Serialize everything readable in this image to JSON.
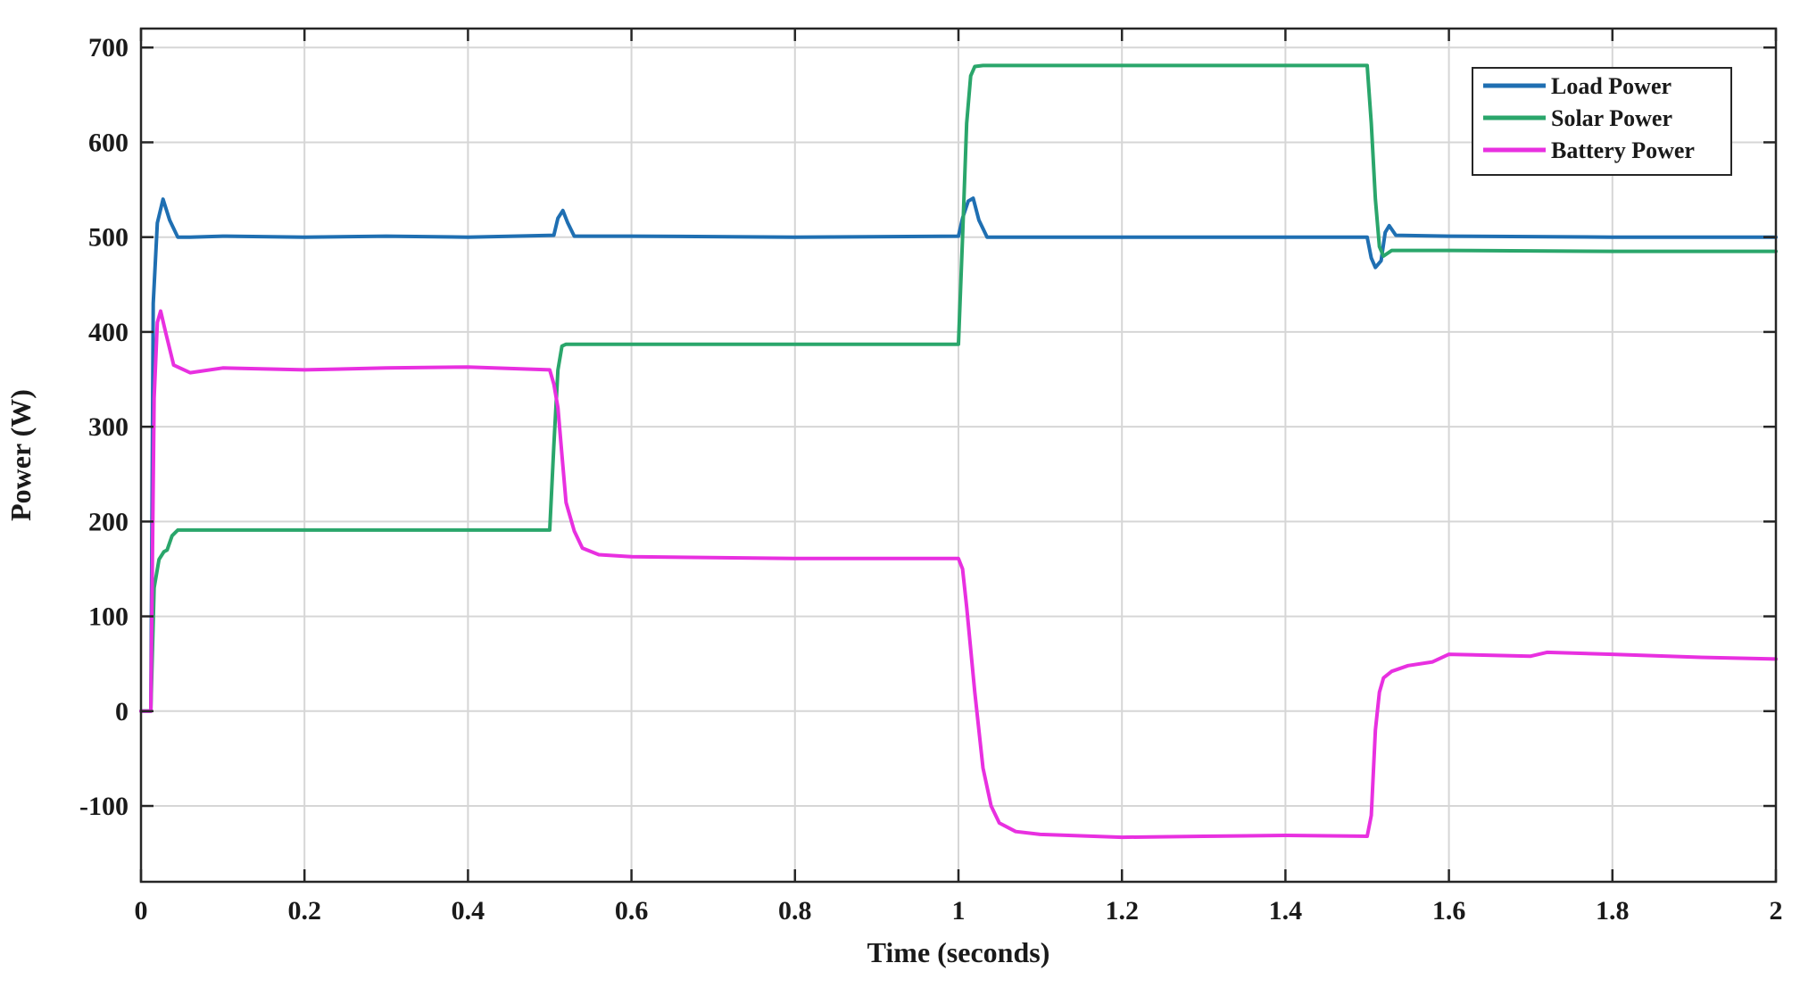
{
  "chart_data": {
    "type": "line",
    "title": "",
    "xlabel": "Time (seconds)",
    "ylabel": "Power (W)",
    "xlim": [
      0,
      2
    ],
    "ylim": [
      -180,
      720
    ],
    "xticks": [
      0,
      0.2,
      0.4,
      0.6,
      0.8,
      1,
      1.2,
      1.4,
      1.6,
      1.8,
      2
    ],
    "xtick_labels": [
      "0",
      "0.2",
      "0.4",
      "0.6",
      "0.8",
      "1",
      "1.2",
      "1.4",
      "1.6",
      "1.8",
      "2"
    ],
    "yticks": [
      -100,
      0,
      100,
      200,
      300,
      400,
      500,
      600,
      700
    ],
    "ytick_labels": [
      "-100",
      "0",
      "100",
      "200",
      "300",
      "400",
      "500",
      "600",
      "700"
    ],
    "grid": true,
    "legend_position": "top-right",
    "series": [
      {
        "name": "Load Power",
        "color": "#1f6fb2",
        "x": [
          0,
          0.012,
          0.015,
          0.02,
          0.027,
          0.035,
          0.045,
          0.06,
          0.1,
          0.2,
          0.3,
          0.4,
          0.505,
          0.51,
          0.516,
          0.522,
          0.53,
          0.6,
          0.8,
          1.0,
          1.005,
          1.012,
          1.018,
          1.025,
          1.035,
          1.05,
          1.2,
          1.4,
          1.5,
          1.505,
          1.51,
          1.517,
          1.522,
          1.527,
          1.535,
          1.6,
          1.8,
          2.0
        ],
        "y": [
          0,
          0,
          430,
          515,
          540,
          518,
          500,
          500,
          501,
          500,
          501,
          500,
          502,
          520,
          528,
          515,
          501,
          501,
          500,
          501,
          520,
          538,
          541,
          518,
          500,
          500,
          500,
          500,
          500,
          478,
          468,
          475,
          505,
          512,
          502,
          501,
          500,
          500
        ]
      },
      {
        "name": "Solar Power",
        "color": "#2aa66b",
        "x": [
          0,
          0.012,
          0.016,
          0.022,
          0.028,
          0.032,
          0.038,
          0.045,
          0.1,
          0.3,
          0.5,
          0.505,
          0.51,
          0.515,
          0.52,
          0.6,
          0.8,
          1.0,
          1.005,
          1.01,
          1.015,
          1.02,
          1.03,
          1.2,
          1.4,
          1.5,
          1.505,
          1.51,
          1.515,
          1.52,
          1.53,
          1.6,
          1.8,
          2.0
        ],
        "y": [
          0,
          0,
          130,
          160,
          168,
          170,
          185,
          191,
          191,
          191,
          191,
          280,
          360,
          385,
          387,
          387,
          387,
          387,
          500,
          620,
          670,
          680,
          681,
          681,
          681,
          681,
          620,
          540,
          490,
          480,
          486,
          486,
          485,
          485
        ]
      },
      {
        "name": "Battery Power",
        "color": "#e830e0",
        "x": [
          0,
          0.012,
          0.016,
          0.02,
          0.024,
          0.03,
          0.04,
          0.06,
          0.1,
          0.2,
          0.3,
          0.4,
          0.5,
          0.505,
          0.51,
          0.515,
          0.52,
          0.53,
          0.54,
          0.56,
          0.6,
          0.8,
          1.0,
          1.005,
          1.01,
          1.02,
          1.03,
          1.04,
          1.05,
          1.07,
          1.1,
          1.2,
          1.3,
          1.4,
          1.5,
          1.505,
          1.51,
          1.515,
          1.52,
          1.53,
          1.55,
          1.58,
          1.6,
          1.7,
          1.72,
          1.8,
          1.9,
          2.0
        ],
        "y": [
          0,
          0,
          330,
          410,
          422,
          400,
          365,
          357,
          362,
          360,
          362,
          363,
          360,
          345,
          320,
          270,
          220,
          190,
          172,
          165,
          163,
          161,
          161,
          150,
          110,
          20,
          -60,
          -100,
          -118,
          -127,
          -130,
          -133,
          -132,
          -131,
          -132,
          -110,
          -20,
          20,
          35,
          42,
          48,
          52,
          60,
          58,
          62,
          60,
          57,
          55
        ]
      }
    ]
  }
}
